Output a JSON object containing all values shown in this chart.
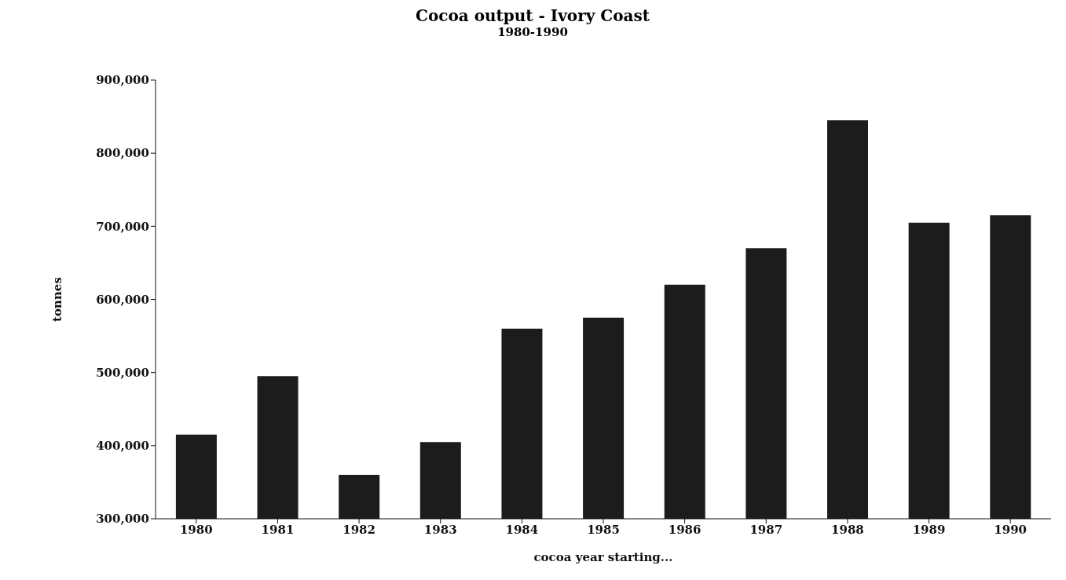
{
  "chart_data": {
    "type": "bar",
    "title": "Cocoa output - Ivory Coast",
    "subtitle": "1980-1990",
    "xlabel": "cocoa year starting...",
    "ylabel": "tonnes",
    "categories": [
      "1980",
      "1981",
      "1982",
      "1983",
      "1984",
      "1985",
      "1986",
      "1987",
      "1988",
      "1989",
      "1990"
    ],
    "values": [
      415000,
      495000,
      360000,
      405000,
      560000,
      575000,
      620000,
      670000,
      845000,
      705000,
      715000
    ],
    "color": "#1c1c1c",
    "ylim": [
      300000,
      900000
    ],
    "yticks": [
      {
        "value": 300000,
        "label": "300,000"
      },
      {
        "value": 400000,
        "label": "400,000"
      },
      {
        "value": 500000,
        "label": "500,000"
      },
      {
        "value": 600000,
        "label": "600,000"
      },
      {
        "value": 700000,
        "label": "700,000"
      },
      {
        "value": 800000,
        "label": "800,000"
      },
      {
        "value": 900000,
        "label": "900,000"
      }
    ],
    "grid": false,
    "legend": false
  }
}
